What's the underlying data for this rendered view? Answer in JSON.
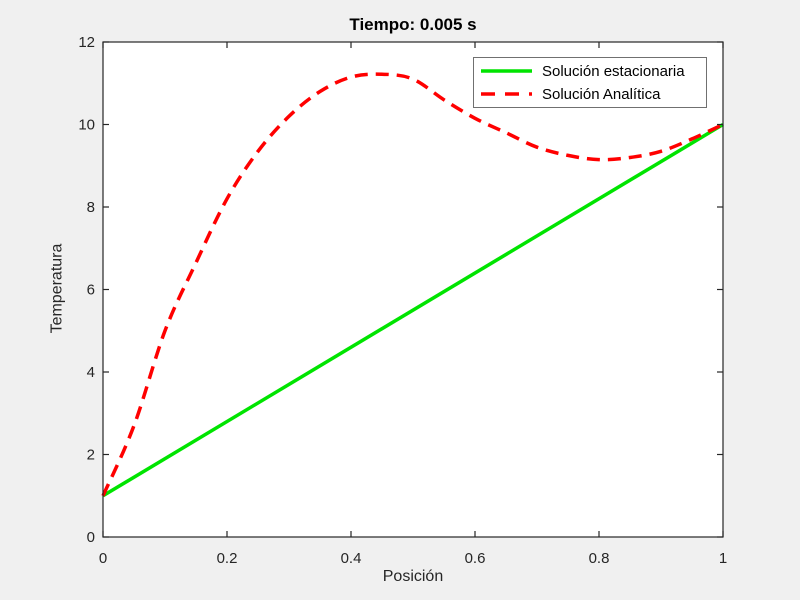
{
  "figure": {
    "background_color": "#F0F0F0"
  },
  "chart_data": {
    "type": "line",
    "title": "Tiempo: 0.005 s",
    "xlabel": "Posición",
    "ylabel": "Temperatura",
    "xlim": [
      0,
      1
    ],
    "ylim": [
      0,
      12
    ],
    "xticks": [
      0,
      0.2,
      0.4,
      0.6,
      0.8,
      1
    ],
    "yticks": [
      0,
      2,
      4,
      6,
      8,
      10,
      12
    ],
    "grid": false,
    "plot_background": "#FFFFFF",
    "axis_color": "#262626",
    "legend_position": "northeast",
    "series": [
      {
        "name": "Solución estacionaria",
        "color": "#00E400",
        "line_style": "solid",
        "line_width": 3.5,
        "smooth": false,
        "x": [
          0,
          1
        ],
        "y": [
          1,
          10
        ]
      },
      {
        "name": "Solución Analítica",
        "color": "#FF0000",
        "line_style": "dashed",
        "line_width": 3.5,
        "smooth": true,
        "x": [
          0,
          0.05,
          0.1,
          0.15,
          0.2,
          0.25,
          0.3,
          0.35,
          0.4,
          0.45,
          0.5,
          0.55,
          0.6,
          0.65,
          0.7,
          0.75,
          0.8,
          0.85,
          0.9,
          0.95,
          1.0
        ],
        "y": [
          1.0,
          2.7,
          5.0,
          6.65,
          8.2,
          9.35,
          10.2,
          10.8,
          11.15,
          11.22,
          11.1,
          10.6,
          10.15,
          9.8,
          9.45,
          9.25,
          9.15,
          9.2,
          9.35,
          9.65,
          10.0
        ]
      }
    ]
  }
}
